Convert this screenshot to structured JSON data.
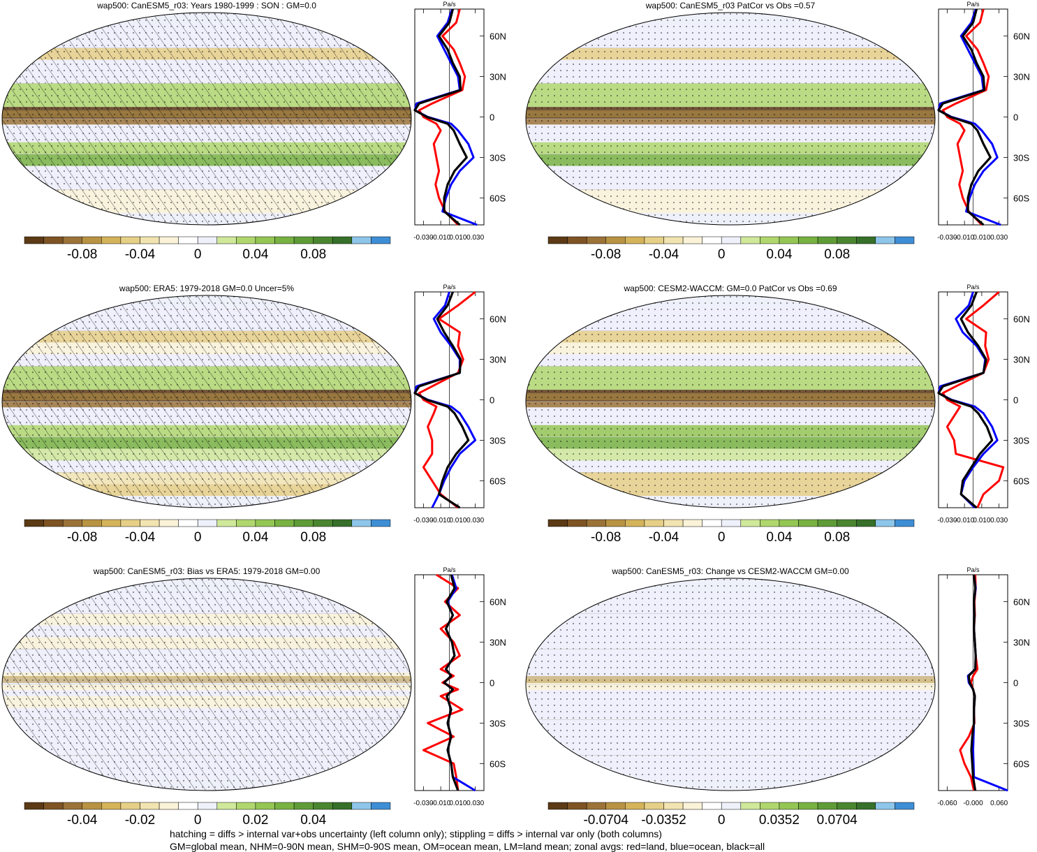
{
  "palette": [
    "#5c3a15",
    "#7e5424",
    "#9b7338",
    "#b79343",
    "#d4b35a",
    "#e6cf87",
    "#f2e4b0",
    "#faf3d8",
    "#ffffff",
    "#eef0fa",
    "#cfe89a",
    "#b0d76e",
    "#94c654",
    "#78b242",
    "#5f9c38",
    "#4a8530",
    "#36702a",
    "#8ec6ea",
    "#3e8ed5"
  ],
  "line_colors": {
    "land": "#ff0000",
    "ocean": "#0000ff",
    "all": "#000000"
  },
  "footer": {
    "line1": "hatching = diffs > internal var+obs uncertainty (left column only); stippling = diffs > internal var only (both columns)",
    "line2": "GM=global mean, NHM=0-90N mean, SHM=0-90S mean, OM=ocean mean, LM=land mean; zonal avgs: red=land, blue=ocean, black=all"
  },
  "chart_data": [
    {
      "type": "heatmap",
      "title": "wap500: CanESM5_r03: Years 1980-1999 : SON : GM=0.0",
      "colorbar_ticks": [
        "-0.08",
        "-0.04",
        "0",
        "0.04",
        "0.08"
      ],
      "zonal": {
        "unit": "Pa/s",
        "x_ticks": [
          "-0.030",
          "-0.010",
          "0.010",
          "0.030"
        ],
        "xlim": [
          -0.04,
          0.04
        ],
        "lat_ticks": [
          "60N",
          "30N",
          "0",
          "30S",
          "60S"
        ],
        "lat": [
          80,
          70,
          60,
          50,
          40,
          30,
          20,
          10,
          5,
          0,
          -5,
          -10,
          -20,
          -30,
          -40,
          -50,
          -60,
          -70,
          -80
        ],
        "land": [
          0.012,
          0.008,
          -0.008,
          0.005,
          0.012,
          0.018,
          0.015,
          -0.02,
          -0.035,
          -0.03,
          -0.015,
          -0.01,
          -0.018,
          -0.015,
          -0.012,
          -0.016,
          -0.012,
          -0.005,
          0.01
        ],
        "ocean": [
          0.003,
          -0.002,
          -0.014,
          -0.006,
          0.002,
          0.01,
          0.012,
          -0.038,
          -0.04,
          -0.025,
          0.002,
          0.01,
          0.022,
          0.028,
          0.012,
          0.002,
          -0.004,
          -0.008,
          0.032
        ],
        "all": [
          0.004,
          0.0,
          -0.012,
          -0.002,
          0.004,
          0.012,
          0.013,
          -0.035,
          -0.04,
          -0.026,
          -0.002,
          0.005,
          0.012,
          0.02,
          0.006,
          -0.002,
          -0.006,
          -0.006,
          0.012
        ]
      }
    },
    {
      "type": "heatmap",
      "title": "wap500: CanESM5_r03 PatCor vs Obs =0.57",
      "colorbar_ticks": [
        "-0.08",
        "-0.04",
        "0",
        "0.04",
        "0.08"
      ],
      "zonal": {
        "unit": "Pa/s",
        "x_ticks": [
          "-0.030",
          "-0.010",
          "0.010",
          "0.030"
        ],
        "xlim": [
          -0.04,
          0.04
        ],
        "lat_ticks": [
          "60N",
          "30N",
          "0",
          "30S",
          "60S"
        ],
        "lat": [
          80,
          70,
          60,
          50,
          40,
          30,
          20,
          10,
          5,
          0,
          -5,
          -10,
          -20,
          -30,
          -40,
          -50,
          -60,
          -70,
          -80
        ],
        "land": [
          0.012,
          0.008,
          -0.008,
          0.005,
          0.012,
          0.018,
          0.015,
          -0.02,
          -0.035,
          -0.03,
          -0.015,
          -0.01,
          -0.018,
          -0.015,
          -0.012,
          -0.016,
          -0.012,
          -0.005,
          0.01
        ],
        "ocean": [
          0.003,
          -0.002,
          -0.014,
          -0.006,
          0.002,
          0.01,
          0.012,
          -0.038,
          -0.04,
          -0.025,
          0.002,
          0.01,
          0.022,
          0.028,
          0.012,
          0.002,
          -0.004,
          -0.008,
          0.032
        ],
        "all": [
          0.004,
          0.0,
          -0.012,
          -0.002,
          0.004,
          0.012,
          0.013,
          -0.035,
          -0.04,
          -0.026,
          -0.002,
          0.005,
          0.012,
          0.02,
          0.006,
          -0.002,
          -0.006,
          -0.006,
          0.012
        ]
      }
    },
    {
      "type": "heatmap",
      "title": "wap500: ERA5: 1979-2018 GM=0.0 Uncer=5%",
      "colorbar_ticks": [
        "-0.08",
        "-0.04",
        "0",
        "0.04",
        "0.08"
      ],
      "zonal": {
        "unit": "Pa/s",
        "x_ticks": [
          "-0.030",
          "-0.010",
          "0.010",
          "0.030"
        ],
        "xlim": [
          -0.04,
          0.04
        ],
        "lat_ticks": [
          "60N",
          "30N",
          "0",
          "30S",
          "60S"
        ],
        "lat": [
          80,
          70,
          60,
          50,
          40,
          30,
          20,
          10,
          5,
          0,
          -5,
          -10,
          -20,
          -30,
          -40,
          -50,
          -60,
          -70,
          -80
        ],
        "land": [
          0.03,
          0.01,
          -0.012,
          0.012,
          0.01,
          0.016,
          0.01,
          -0.02,
          -0.035,
          -0.03,
          -0.015,
          -0.018,
          -0.025,
          -0.02,
          -0.02,
          -0.03,
          -0.02,
          -0.01,
          0.01
        ],
        "ocean": [
          0.0,
          -0.005,
          -0.018,
          -0.01,
          0.002,
          0.012,
          0.012,
          -0.038,
          -0.04,
          -0.025,
          0.002,
          0.012,
          0.022,
          0.03,
          0.012,
          0.002,
          -0.006,
          -0.012,
          -0.02
        ],
        "all": [
          0.004,
          -0.002,
          -0.014,
          -0.006,
          0.004,
          0.013,
          0.012,
          -0.035,
          -0.04,
          -0.026,
          -0.002,
          0.006,
          0.015,
          0.022,
          0.008,
          -0.002,
          -0.008,
          -0.012,
          0.012
        ]
      }
    },
    {
      "type": "heatmap",
      "title": "wap500: CESM2-WACCM: GM=0.0 PatCor vs Obs =0.69",
      "colorbar_ticks": [
        "-0.08",
        "-0.04",
        "0",
        "0.04",
        "0.08"
      ],
      "zonal": {
        "unit": "Pa/s",
        "x_ticks": [
          "-0.030",
          "-0.010",
          "0.010",
          "0.030"
        ],
        "xlim": [
          -0.04,
          0.04
        ],
        "lat_ticks": [
          "60N",
          "30N",
          "0",
          "30S",
          "60S"
        ],
        "lat": [
          80,
          70,
          60,
          50,
          40,
          30,
          20,
          10,
          5,
          0,
          -5,
          -10,
          -20,
          -30,
          -40,
          -50,
          -60,
          -70,
          -80
        ],
        "land": [
          0.03,
          0.012,
          -0.008,
          0.015,
          0.014,
          0.018,
          0.012,
          -0.02,
          -0.035,
          -0.03,
          -0.015,
          -0.02,
          -0.03,
          -0.022,
          -0.02,
          0.035,
          0.03,
          0.012,
          0.005
        ],
        "ocean": [
          0.0,
          -0.005,
          -0.02,
          -0.012,
          0.004,
          0.014,
          0.012,
          -0.038,
          -0.04,
          -0.025,
          0.002,
          0.012,
          0.022,
          0.028,
          0.012,
          0.0,
          -0.01,
          -0.014,
          0.002
        ],
        "all": [
          0.004,
          -0.002,
          -0.014,
          -0.006,
          0.006,
          0.015,
          0.012,
          -0.035,
          -0.04,
          -0.026,
          -0.002,
          0.006,
          0.016,
          0.022,
          0.008,
          -0.002,
          -0.012,
          -0.014,
          0.004
        ]
      }
    },
    {
      "type": "heatmap",
      "title": "wap500: CanESM5_r03: Bias vs ERA5: 1979-2018  GM=0.00",
      "colorbar_ticks": [
        "-0.04",
        "-0.02",
        "0",
        "0.02",
        "0.04"
      ],
      "zonal": {
        "unit": "Pa/s",
        "x_ticks": [
          "-0.030",
          "-0.010",
          "0.010",
          "0.030"
        ],
        "xlim": [
          -0.04,
          0.04
        ],
        "lat_ticks": [
          "60N",
          "30N",
          "0",
          "30S",
          "60S"
        ],
        "lat": [
          80,
          70,
          60,
          50,
          40,
          30,
          20,
          10,
          5,
          0,
          -5,
          -10,
          -20,
          -30,
          -40,
          -50,
          -60,
          -70,
          -80
        ],
        "land": [
          -0.015,
          0.01,
          -0.005,
          0.012,
          -0.01,
          0.005,
          0.012,
          -0.01,
          0.005,
          -0.008,
          0.01,
          -0.01,
          0.015,
          -0.025,
          0.005,
          -0.03,
          0.005,
          0.008,
          0.01
        ],
        "ocean": [
          0.003,
          0.008,
          -0.002,
          0.004,
          -0.004,
          0.003,
          0.006,
          -0.004,
          0.002,
          -0.006,
          0.004,
          -0.003,
          0.002,
          -0.002,
          0.002,
          -0.002,
          0.002,
          0.004,
          0.03
        ],
        "all": [
          0.002,
          0.006,
          -0.003,
          0.004,
          -0.004,
          0.003,
          0.006,
          -0.004,
          0.002,
          -0.006,
          0.004,
          -0.003,
          0.002,
          -0.002,
          0.002,
          -0.002,
          0.002,
          0.004,
          0.01
        ]
      }
    },
    {
      "type": "heatmap",
      "title": "wap500: CanESM5_r03: Change vs CESM2-WACCM GM=0.00",
      "colorbar_ticks": [
        "-0.0704",
        "-0.0352",
        "0",
        "0.0352",
        "0.0704"
      ],
      "zonal": {
        "unit": "Pa/s",
        "x_ticks": [
          "-0.060",
          "-0.000",
          "0.060"
        ],
        "xlim": [
          -0.08,
          0.08
        ],
        "lat_ticks": [
          "60N",
          "30N",
          "0",
          "30S",
          "60S"
        ],
        "lat": [
          80,
          70,
          60,
          50,
          40,
          30,
          20,
          10,
          5,
          0,
          -5,
          -10,
          -20,
          -30,
          -40,
          -50,
          -60,
          -70,
          -80
        ],
        "land": [
          0.005,
          0.006,
          0.003,
          0.004,
          0.002,
          0.004,
          0.006,
          0.01,
          0.0,
          -0.005,
          0.0,
          0.004,
          0.002,
          0.003,
          -0.01,
          -0.03,
          -0.02,
          -0.005,
          0.002
        ],
        "ocean": [
          0.002,
          0.006,
          0.002,
          0.003,
          0.002,
          0.004,
          0.006,
          0.005,
          -0.012,
          -0.01,
          0.0,
          0.004,
          0.002,
          0.002,
          0.001,
          0.0,
          0.001,
          0.002,
          0.08
        ],
        "all": [
          0.002,
          0.005,
          0.002,
          0.003,
          0.002,
          0.004,
          0.006,
          0.005,
          -0.01,
          -0.008,
          0.0,
          0.004,
          0.002,
          0.002,
          -0.002,
          -0.004,
          -0.002,
          0.0,
          0.005
        ]
      }
    }
  ]
}
